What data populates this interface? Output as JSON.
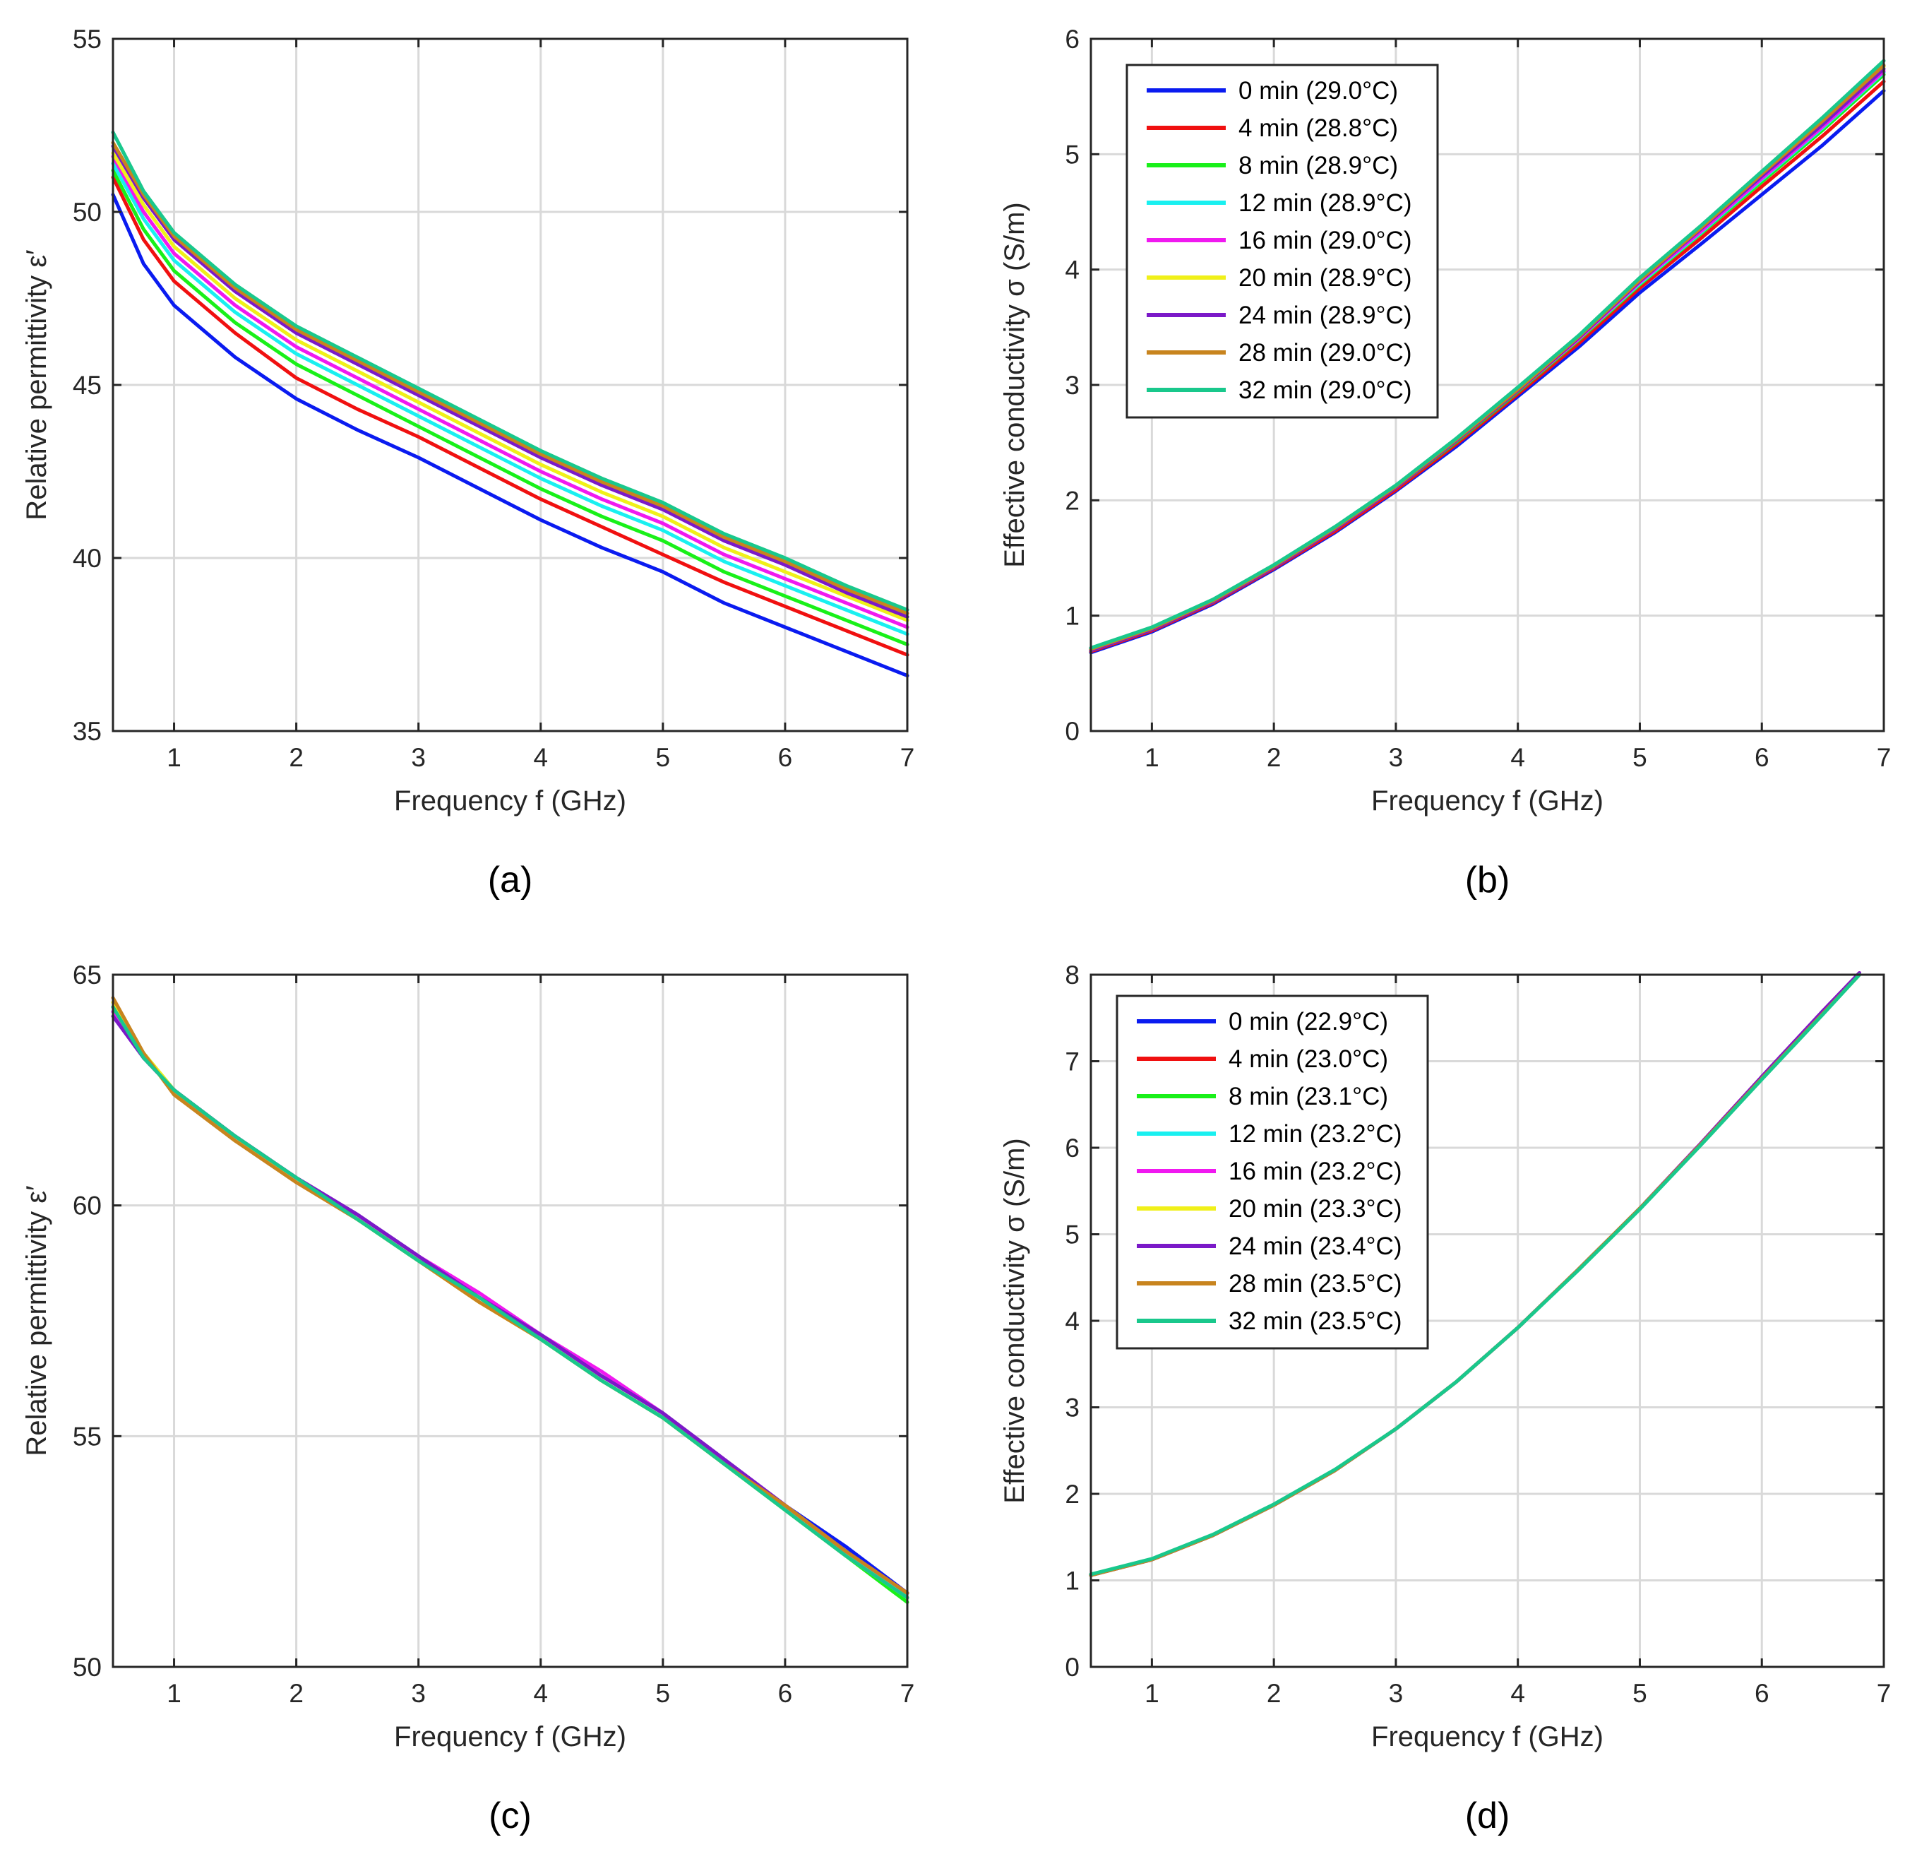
{
  "chart_data": [
    {
      "panel": "a",
      "type": "line",
      "caption": "(a)",
      "xlabel": "Frequency f (GHz)",
      "ylabel": "Relative permittivity ε′",
      "xlim": [
        0.5,
        7
      ],
      "ylim": [
        35,
        55
      ],
      "xticks": [
        1,
        2,
        3,
        4,
        5,
        6,
        7
      ],
      "yticks": [
        35,
        40,
        45,
        50,
        55
      ],
      "grid": true,
      "legend": null,
      "x": [
        0.5,
        0.75,
        1,
        1.5,
        2,
        2.5,
        3,
        3.5,
        4,
        4.5,
        5,
        5.5,
        6,
        6.5,
        7
      ],
      "series": [
        {
          "name": "0 min (29.0°C)",
          "color": "#0a1bf0",
          "values": [
            50.5,
            48.5,
            47.3,
            45.8,
            44.6,
            43.7,
            42.9,
            42.0,
            41.1,
            40.3,
            39.6,
            38.7,
            38.0,
            37.3,
            36.6
          ]
        },
        {
          "name": "4 min (28.8°C)",
          "color": "#f01010",
          "values": [
            51.0,
            49.2,
            48.0,
            46.5,
            45.2,
            44.3,
            43.5,
            42.6,
            41.7,
            40.9,
            40.1,
            39.3,
            38.6,
            37.9,
            37.2
          ]
        },
        {
          "name": "8 min (28.9°C)",
          "color": "#19f019",
          "values": [
            51.2,
            49.5,
            48.3,
            46.8,
            45.6,
            44.7,
            43.8,
            42.9,
            42.0,
            41.2,
            40.5,
            39.6,
            38.9,
            38.2,
            37.5
          ]
        },
        {
          "name": "12 min (28.9°C)",
          "color": "#19f0f0",
          "values": [
            51.4,
            49.8,
            48.6,
            47.1,
            45.9,
            45.0,
            44.1,
            43.2,
            42.3,
            41.5,
            40.8,
            39.9,
            39.2,
            38.5,
            37.8
          ]
        },
        {
          "name": "16 min (29.0°C)",
          "color": "#f019f0",
          "values": [
            51.6,
            50.0,
            48.8,
            47.3,
            46.1,
            45.2,
            44.3,
            43.4,
            42.5,
            41.7,
            41.0,
            40.1,
            39.4,
            38.7,
            38.0
          ]
        },
        {
          "name": "20 min (28.9°C)",
          "color": "#f0f019",
          "values": [
            51.7,
            50.2,
            49.0,
            47.5,
            46.3,
            45.4,
            44.5,
            43.6,
            42.7,
            41.9,
            41.2,
            40.3,
            39.6,
            38.9,
            38.2
          ]
        },
        {
          "name": "24 min (28.9°C)",
          "color": "#7b19c8",
          "values": [
            51.9,
            50.4,
            49.2,
            47.7,
            46.5,
            45.6,
            44.7,
            43.8,
            42.9,
            42.1,
            41.4,
            40.5,
            39.8,
            39.0,
            38.3
          ]
        },
        {
          "name": "28 min (29.0°C)",
          "color": "#c8841e",
          "values": [
            52.0,
            50.5,
            49.3,
            47.8,
            46.6,
            45.7,
            44.8,
            43.9,
            43.0,
            42.2,
            41.5,
            40.6,
            39.9,
            39.1,
            38.4
          ]
        },
        {
          "name": "32 min (29.0°C)",
          "color": "#19c88c",
          "values": [
            52.3,
            50.6,
            49.4,
            47.9,
            46.7,
            45.8,
            44.9,
            44.0,
            43.1,
            42.3,
            41.6,
            40.7,
            40.0,
            39.2,
            38.5
          ]
        }
      ]
    },
    {
      "panel": "b",
      "type": "line",
      "caption": "(b)",
      "xlabel": "Frequency f (GHz)",
      "ylabel": "Effective conductivity σ (S/m)",
      "xlim": [
        0.5,
        7
      ],
      "ylim": [
        0,
        6
      ],
      "xticks": [
        1,
        2,
        3,
        4,
        5,
        6,
        7
      ],
      "yticks": [
        0,
        1,
        2,
        3,
        4,
        5,
        6
      ],
      "grid": true,
      "legend": "top-left",
      "x": [
        0.5,
        1,
        1.5,
        2,
        2.5,
        3,
        3.5,
        4,
        4.5,
        5,
        5.5,
        6,
        6.5,
        7
      ],
      "series": [
        {
          "name": "0 min (29.0°C)",
          "color": "#0a1bf0",
          "values": [
            0.68,
            0.86,
            1.1,
            1.4,
            1.72,
            2.08,
            2.47,
            2.9,
            3.33,
            3.8,
            4.22,
            4.65,
            5.08,
            5.55
          ]
        },
        {
          "name": "4 min (28.8°C)",
          "color": "#f01010",
          "values": [
            0.69,
            0.87,
            1.11,
            1.41,
            1.73,
            2.09,
            2.49,
            2.92,
            3.36,
            3.84,
            4.27,
            4.72,
            5.16,
            5.63
          ]
        },
        {
          "name": "8 min (28.9°C)",
          "color": "#19f019",
          "values": [
            0.7,
            0.88,
            1.12,
            1.42,
            1.75,
            2.11,
            2.51,
            2.94,
            3.39,
            3.87,
            4.31,
            4.76,
            5.21,
            5.69
          ]
        },
        {
          "name": "12 min (28.9°C)",
          "color": "#19f0f0",
          "values": [
            0.7,
            0.88,
            1.12,
            1.42,
            1.75,
            2.11,
            2.52,
            2.95,
            3.4,
            3.88,
            4.32,
            4.78,
            5.23,
            5.71
          ]
        },
        {
          "name": "16 min (29.0°C)",
          "color": "#f019f0",
          "values": [
            0.7,
            0.88,
            1.12,
            1.42,
            1.75,
            2.11,
            2.52,
            2.95,
            3.4,
            3.89,
            4.33,
            4.79,
            5.24,
            5.72
          ]
        },
        {
          "name": "20 min (28.9°C)",
          "color": "#f0f019",
          "values": [
            0.71,
            0.89,
            1.13,
            1.43,
            1.76,
            2.12,
            2.53,
            2.97,
            3.42,
            3.91,
            4.36,
            4.82,
            5.28,
            5.76
          ]
        },
        {
          "name": "24 min (28.9°C)",
          "color": "#7b19c8",
          "values": [
            0.7,
            0.88,
            1.12,
            1.42,
            1.75,
            2.11,
            2.52,
            2.95,
            3.41,
            3.9,
            4.35,
            4.81,
            5.26,
            5.74
          ]
        },
        {
          "name": "28 min (29.0°C)",
          "color": "#c8841e",
          "values": [
            0.71,
            0.89,
            1.13,
            1.43,
            1.76,
            2.12,
            2.53,
            2.96,
            3.42,
            3.91,
            4.36,
            4.83,
            5.29,
            5.77
          ]
        },
        {
          "name": "32 min (29.0°C)",
          "color": "#19c88c",
          "values": [
            0.72,
            0.9,
            1.14,
            1.44,
            1.77,
            2.13,
            2.54,
            2.98,
            3.43,
            3.93,
            4.38,
            4.85,
            5.32,
            5.81
          ]
        }
      ]
    },
    {
      "panel": "c",
      "type": "line",
      "caption": "(c)",
      "xlabel": "Frequency f (GHz)",
      "ylabel": "Relative permittivity ε′",
      "xlim": [
        0.5,
        7
      ],
      "ylim": [
        50,
        65
      ],
      "xticks": [
        1,
        2,
        3,
        4,
        5,
        6,
        7
      ],
      "yticks": [
        50,
        55,
        60,
        65
      ],
      "grid": true,
      "legend": null,
      "x": [
        0.5,
        0.75,
        1,
        1.5,
        2,
        2.5,
        3,
        3.5,
        4,
        4.5,
        5,
        5.5,
        6,
        6.5,
        7
      ],
      "series": [
        {
          "name": "0 min (22.9°C)",
          "color": "#0a1bf0",
          "values": [
            64.2,
            63.2,
            62.5,
            61.5,
            60.6,
            59.8,
            58.9,
            58.0,
            57.2,
            56.3,
            55.5,
            54.5,
            53.5,
            52.6,
            51.6
          ]
        },
        {
          "name": "4 min (23.0°C)",
          "color": "#f01010",
          "values": [
            64.3,
            63.2,
            62.5,
            61.5,
            60.6,
            59.8,
            58.9,
            58.0,
            57.2,
            56.3,
            55.5,
            54.5,
            53.5,
            52.5,
            51.6
          ]
        },
        {
          "name": "8 min (23.1°C)",
          "color": "#19f019",
          "values": [
            64.3,
            63.3,
            62.5,
            61.5,
            60.6,
            59.7,
            58.8,
            58.0,
            57.1,
            56.2,
            55.4,
            54.4,
            53.4,
            52.4,
            51.4
          ]
        },
        {
          "name": "12 min (23.2°C)",
          "color": "#19f0f0",
          "values": [
            64.3,
            63.2,
            62.5,
            61.5,
            60.6,
            59.8,
            58.9,
            58.0,
            57.2,
            56.3,
            55.5,
            54.5,
            53.5,
            52.5,
            51.5
          ]
        },
        {
          "name": "16 min (23.2°C)",
          "color": "#f019f0",
          "values": [
            64.2,
            63.2,
            62.5,
            61.5,
            60.6,
            59.8,
            58.9,
            58.1,
            57.2,
            56.4,
            55.5,
            54.5,
            53.5,
            52.5,
            51.6
          ]
        },
        {
          "name": "20 min (23.3°C)",
          "color": "#f0f019",
          "values": [
            64.4,
            63.3,
            62.5,
            61.4,
            60.6,
            59.7,
            58.8,
            57.9,
            57.1,
            56.2,
            55.4,
            54.4,
            53.4,
            52.4,
            51.5
          ]
        },
        {
          "name": "24 min (23.4°C)",
          "color": "#7b19c8",
          "values": [
            64.1,
            63.2,
            62.5,
            61.5,
            60.6,
            59.8,
            58.9,
            58.0,
            57.2,
            56.3,
            55.5,
            54.5,
            53.5,
            52.5,
            51.6
          ]
        },
        {
          "name": "28 min (23.5°C)",
          "color": "#c8841e",
          "values": [
            64.5,
            63.3,
            62.4,
            61.4,
            60.5,
            59.7,
            58.8,
            57.9,
            57.1,
            56.2,
            55.4,
            54.4,
            53.5,
            52.5,
            51.6
          ]
        },
        {
          "name": "32 min (23.5°C)",
          "color": "#19c88c",
          "values": [
            64.3,
            63.2,
            62.5,
            61.5,
            60.6,
            59.7,
            58.8,
            58.0,
            57.1,
            56.2,
            55.4,
            54.4,
            53.4,
            52.4,
            51.5
          ]
        }
      ]
    },
    {
      "panel": "d",
      "type": "line",
      "caption": "(d)",
      "xlabel": "Frequency f (GHz)",
      "ylabel": "Effective conductivity σ (S/m)",
      "xlim": [
        0.5,
        7
      ],
      "ylim": [
        0,
        8
      ],
      "xticks": [
        1,
        2,
        3,
        4,
        5,
        6,
        7
      ],
      "yticks": [
        0,
        1,
        2,
        3,
        4,
        5,
        6,
        7,
        8
      ],
      "grid": true,
      "legend": "top-left",
      "x": [
        0.5,
        1,
        1.5,
        2,
        2.5,
        3,
        3.5,
        4,
        4.5,
        5,
        5.5,
        6,
        6.5,
        6.8
      ],
      "series": [
        {
          "name": "0 min (22.9°C)",
          "color": "#0a1bf0",
          "values": [
            1.06,
            1.24,
            1.52,
            1.87,
            2.27,
            2.75,
            3.3,
            3.92,
            4.6,
            5.3,
            6.05,
            6.82,
            7.58,
            8.02
          ]
        },
        {
          "name": "4 min (23.0°C)",
          "color": "#f01010",
          "values": [
            1.06,
            1.24,
            1.52,
            1.87,
            2.27,
            2.75,
            3.3,
            3.92,
            4.6,
            5.3,
            6.05,
            6.82,
            7.58,
            8.02
          ]
        },
        {
          "name": "8 min (23.1°C)",
          "color": "#19f019",
          "values": [
            1.06,
            1.24,
            1.52,
            1.87,
            2.27,
            2.75,
            3.3,
            3.92,
            4.6,
            5.3,
            6.04,
            6.8,
            7.55,
            8.0
          ]
        },
        {
          "name": "12 min (23.2°C)",
          "color": "#19f0f0",
          "values": [
            1.06,
            1.24,
            1.52,
            1.87,
            2.27,
            2.75,
            3.3,
            3.92,
            4.6,
            5.3,
            6.04,
            6.8,
            7.55,
            8.0
          ]
        },
        {
          "name": "16 min (23.2°C)",
          "color": "#f019f0",
          "values": [
            1.06,
            1.24,
            1.52,
            1.87,
            2.27,
            2.75,
            3.3,
            3.92,
            4.6,
            5.3,
            6.05,
            6.82,
            7.58,
            8.02
          ]
        },
        {
          "name": "20 min (23.3°C)",
          "color": "#f0f019",
          "values": [
            1.06,
            1.24,
            1.52,
            1.87,
            2.27,
            2.75,
            3.3,
            3.92,
            4.6,
            5.3,
            6.04,
            6.8,
            7.55,
            8.0
          ]
        },
        {
          "name": "24 min (23.4°C)",
          "color": "#7b19c8",
          "values": [
            1.06,
            1.24,
            1.52,
            1.87,
            2.27,
            2.75,
            3.3,
            3.92,
            4.6,
            5.3,
            6.05,
            6.82,
            7.58,
            8.02
          ]
        },
        {
          "name": "28 min (23.5°C)",
          "color": "#c8841e",
          "values": [
            1.06,
            1.24,
            1.52,
            1.87,
            2.27,
            2.75,
            3.3,
            3.92,
            4.6,
            5.3,
            6.04,
            6.8,
            7.55,
            8.0
          ]
        },
        {
          "name": "32 min (23.5°C)",
          "color": "#19c88c",
          "values": [
            1.07,
            1.25,
            1.53,
            1.88,
            2.28,
            2.75,
            3.3,
            3.92,
            4.59,
            5.29,
            6.03,
            6.79,
            7.54,
            8.0
          ]
        }
      ]
    }
  ]
}
